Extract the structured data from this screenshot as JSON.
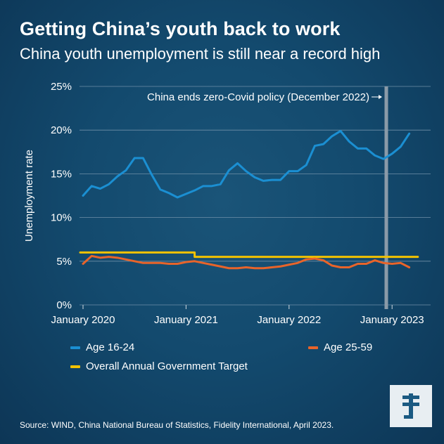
{
  "title": "Getting China’s youth back to work",
  "subtitle": "China youth unemployment is still near a record high",
  "source": "Source: WIND, China National Bureau of Statistics, Fidelity International, April 2023.",
  "colors": {
    "youth": "#1b8fd2",
    "adult": "#e8642a",
    "target": "#f2c200",
    "marker": "#8a9aa8",
    "grid": "#6f8fa8"
  },
  "legend": {
    "youth": "Age 16-24",
    "adult": "Age 25-59",
    "target": "Overall Annual Government Target"
  },
  "logo_icon": "fidelity-logo-icon",
  "chart_data": {
    "type": "line",
    "ylabel": "Unemployment rate",
    "xlabel": "",
    "y_unit": "%",
    "ylim": [
      0,
      25
    ],
    "y_ticks": [
      "0%",
      "5%",
      "10%",
      "15%",
      "20%",
      "25%"
    ],
    "x_ticks": [
      "January 2020",
      "January 2021",
      "January 2022",
      "January 2023"
    ],
    "grid": "horizontal",
    "legend_position": "bottom",
    "annotation": {
      "text": "China ends zero-Covid policy (December 2022)",
      "x": "2022-12"
    },
    "x": [
      "2020-01",
      "2020-02",
      "2020-03",
      "2020-04",
      "2020-05",
      "2020-06",
      "2020-07",
      "2020-08",
      "2020-09",
      "2020-10",
      "2020-11",
      "2020-12",
      "2021-01",
      "2021-02",
      "2021-03",
      "2021-04",
      "2021-05",
      "2021-06",
      "2021-07",
      "2021-08",
      "2021-09",
      "2021-10",
      "2021-11",
      "2021-12",
      "2022-01",
      "2022-02",
      "2022-03",
      "2022-04",
      "2022-05",
      "2022-06",
      "2022-07",
      "2022-08",
      "2022-09",
      "2022-10",
      "2022-11",
      "2022-12",
      "2023-01",
      "2023-02",
      "2023-03",
      "2023-04"
    ],
    "series": [
      {
        "name": "Age 16-24",
        "values": [
          12.5,
          13.6,
          13.3,
          13.8,
          14.7,
          15.4,
          16.8,
          16.8,
          14.9,
          13.2,
          12.8,
          12.3,
          12.7,
          13.1,
          13.6,
          13.6,
          13.8,
          15.4,
          16.2,
          15.3,
          14.6,
          14.2,
          14.3,
          14.3,
          15.3,
          15.3,
          16.0,
          18.2,
          18.4,
          19.3,
          19.9,
          18.7,
          17.9,
          17.9,
          17.1,
          16.7,
          17.3,
          18.1,
          19.6,
          null
        ]
      },
      {
        "name": "Age 25-59",
        "values": [
          4.7,
          5.6,
          5.4,
          5.5,
          5.4,
          5.2,
          5.0,
          4.8,
          4.8,
          4.8,
          4.7,
          4.7,
          4.9,
          5.0,
          4.8,
          4.6,
          4.4,
          4.2,
          4.2,
          4.3,
          4.2,
          4.2,
          4.3,
          4.4,
          4.6,
          4.8,
          5.2,
          5.3,
          5.1,
          4.5,
          4.3,
          4.3,
          4.7,
          4.7,
          5.1,
          4.8,
          4.7,
          4.8,
          4.3,
          null
        ]
      },
      {
        "name": "Overall Annual Government Target",
        "values": [
          6.0,
          6.0,
          6.0,
          6.0,
          6.0,
          6.0,
          6.0,
          6.0,
          6.0,
          6.0,
          6.0,
          6.0,
          6.0,
          5.5,
          5.5,
          5.5,
          5.5,
          5.5,
          5.5,
          5.5,
          5.5,
          5.5,
          5.5,
          5.5,
          5.5,
          5.5,
          5.5,
          5.5,
          5.5,
          5.5,
          5.5,
          5.5,
          5.5,
          5.5,
          5.5,
          5.5,
          5.5,
          5.5,
          5.5,
          5.5
        ]
      }
    ]
  }
}
